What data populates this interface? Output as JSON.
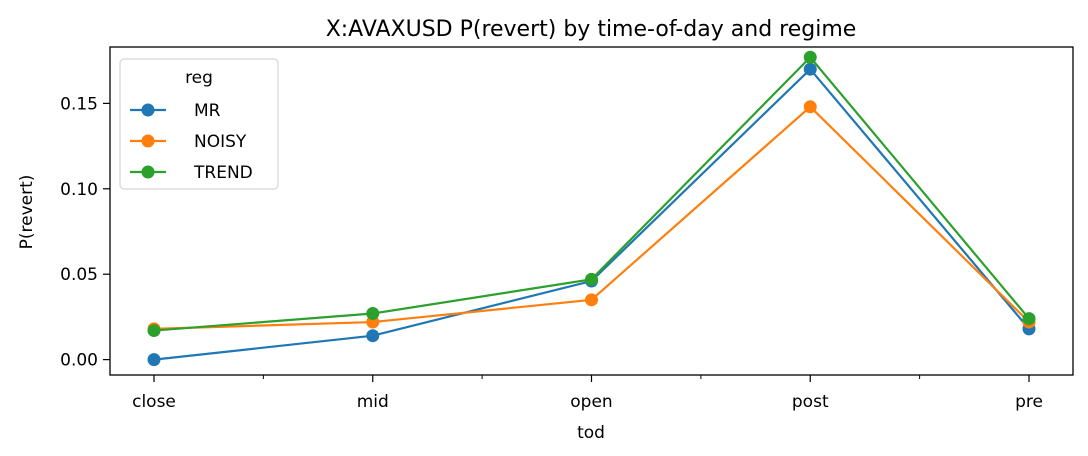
{
  "chart_data": {
    "type": "line",
    "title": "X:AVAXUSD P(revert) by time-of-day and regime",
    "xlabel": "tod",
    "ylabel": "P(revert)",
    "categories": [
      "close",
      "mid",
      "open",
      "post",
      "pre"
    ],
    "ylim": [
      -0.009,
      0.183
    ],
    "yticks": [
      0.0,
      0.05,
      0.1,
      0.15
    ],
    "ytick_labels": [
      "0.00",
      "0.05",
      "0.10",
      "0.15"
    ],
    "grid": false,
    "legend": {
      "title": "reg",
      "placement": "top-left"
    },
    "series": [
      {
        "name": "MR",
        "color": "#1f77b4",
        "values": [
          0.0,
          0.014,
          0.046,
          0.17,
          0.018
        ]
      },
      {
        "name": "NOISY",
        "color": "#ff7f0e",
        "values": [
          0.018,
          0.022,
          0.035,
          0.148,
          0.022
        ]
      },
      {
        "name": "TREND",
        "color": "#2ca02c",
        "values": [
          0.017,
          0.027,
          0.047,
          0.177,
          0.024
        ]
      }
    ]
  }
}
